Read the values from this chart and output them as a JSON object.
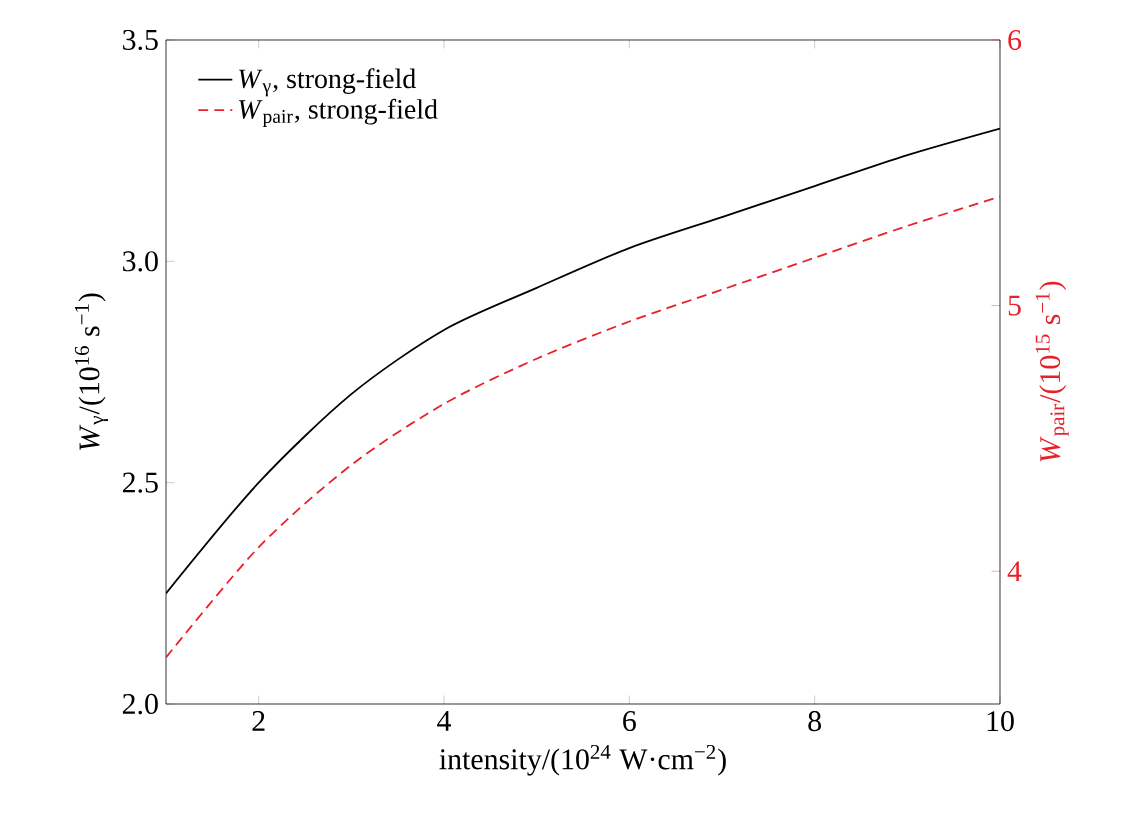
{
  "chart_data": {
    "type": "line",
    "xlabel": "intensity/(10$^{24}$ W·cm$^{−2}$)",
    "ylabel": "*W*$_{γ}$/(10$^{16}$ s$^{−1}$)",
    "y2label": "*W*$_{pair}$/(10$^{15}$ s$^{−1}$)",
    "x": [
      1,
      2,
      3,
      4,
      5,
      6,
      7,
      8,
      9,
      10
    ],
    "xlim": [
      1,
      10
    ],
    "xticks": [
      2,
      4,
      6,
      8,
      10
    ],
    "ylim": [
      2,
      3.5
    ],
    "yticks": [
      {
        "value": 2,
        "label": "2.0"
      },
      {
        "value": 2.5,
        "label": "2.5"
      },
      {
        "value": 3,
        "label": "3.0"
      },
      {
        "value": 3.5,
        "label": "3.5"
      }
    ],
    "y2lim": [
      3.5,
      6
    ],
    "y2ticks": [
      4,
      5,
      6
    ],
    "series": [
      {
        "name": "*W*$_{γ}$, strong-field",
        "color": "#000000",
        "line_style": "solid",
        "values": [
          2.25,
          2.5,
          2.7,
          2.845,
          2.94,
          3.03,
          3.1,
          3.17,
          3.24,
          3.3
        ]
      },
      {
        "name": "*W*$_{pair}$, strong-field",
        "color": "#e8202a",
        "line_style": "dashed",
        "axis": "y2",
        "values": [
          3.675,
          4.09,
          4.4,
          4.63,
          4.8,
          4.94,
          5.06,
          5.18,
          5.3,
          5.41
        ]
      }
    ],
    "legend": "top left",
    "marker": "none"
  }
}
